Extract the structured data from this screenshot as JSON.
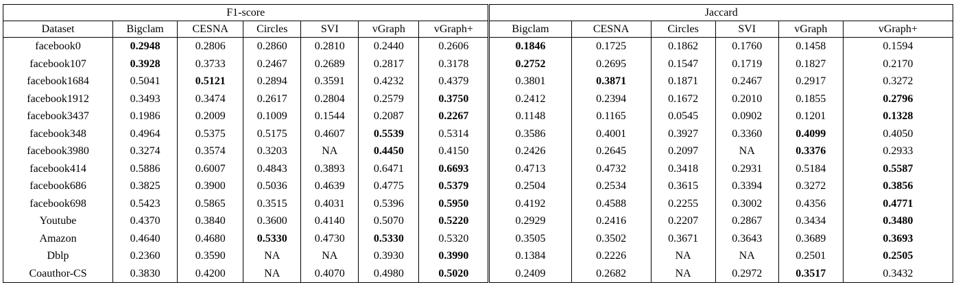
{
  "table": {
    "metric_groups": [
      {
        "label": "F1-score",
        "colspan": 7
      },
      {
        "label": "Jaccard",
        "colspan": 6
      }
    ],
    "column_headers": [
      "Dataset",
      "Bigclam",
      "CESNA",
      "Circles",
      "SVI",
      "vGraph",
      "vGraph+",
      "Bigclam",
      "CESNA",
      "Circles",
      "SVI",
      "vGraph",
      "vGraph+"
    ],
    "rows": [
      {
        "dataset": "facebook0",
        "f1": [
          "0.2948",
          "0.2806",
          "0.2860",
          "0.2810",
          "0.2440",
          "0.2606"
        ],
        "f1_bold": [
          0
        ],
        "jaccard": [
          "0.1846",
          "0.1725",
          "0.1862",
          "0.1760",
          "0.1458",
          "0.1594"
        ],
        "jaccard_bold": [
          0
        ]
      },
      {
        "dataset": "facebook107",
        "f1": [
          "0.3928",
          "0.3733",
          "0.2467",
          "0.2689",
          "0.2817",
          "0.3178"
        ],
        "f1_bold": [
          0
        ],
        "jaccard": [
          "0.2752",
          "0.2695",
          "0.1547",
          "0.1719",
          "0.1827",
          "0.2170"
        ],
        "jaccard_bold": [
          0
        ]
      },
      {
        "dataset": "facebook1684",
        "f1": [
          "0.5041",
          "0.5121",
          "0.2894",
          "0.3591",
          "0.4232",
          "0.4379"
        ],
        "f1_bold": [
          1
        ],
        "jaccard": [
          "0.3801",
          "0.3871",
          "0.1871",
          "0.2467",
          "0.2917",
          "0.3272"
        ],
        "jaccard_bold": [
          1
        ]
      },
      {
        "dataset": "facebook1912",
        "f1": [
          "0.3493",
          "0.3474",
          "0.2617",
          "0.2804",
          "0.2579",
          "0.3750"
        ],
        "f1_bold": [
          5
        ],
        "jaccard": [
          "0.2412",
          "0.2394",
          "0.1672",
          "0.2010",
          "0.1855",
          "0.2796"
        ],
        "jaccard_bold": [
          5
        ]
      },
      {
        "dataset": "facebook3437",
        "f1": [
          "0.1986",
          "0.2009",
          "0.1009",
          "0.1544",
          "0.2087",
          "0.2267"
        ],
        "f1_bold": [
          5
        ],
        "jaccard": [
          "0.1148",
          "0.1165",
          "0.0545",
          "0.0902",
          "0.1201",
          "0.1328"
        ],
        "jaccard_bold": [
          5
        ]
      },
      {
        "dataset": "facebook348",
        "f1": [
          "0.4964",
          "0.5375",
          "0.5175",
          "0.4607",
          "0.5539",
          "0.5314"
        ],
        "f1_bold": [
          4
        ],
        "jaccard": [
          "0.3586",
          "0.4001",
          "0.3927",
          "0.3360",
          "0.4099",
          "0.4050"
        ],
        "jaccard_bold": [
          4
        ]
      },
      {
        "dataset": "facebook3980",
        "f1": [
          "0.3274",
          "0.3574",
          "0.3203",
          "NA",
          "0.4450",
          "0.4150"
        ],
        "f1_bold": [
          4
        ],
        "jaccard": [
          "0.2426",
          "0.2645",
          "0.2097",
          "NA",
          "0.3376",
          "0.2933"
        ],
        "jaccard_bold": [
          4
        ]
      },
      {
        "dataset": "facebook414",
        "f1": [
          "0.5886",
          "0.6007",
          "0.4843",
          "0.3893",
          "0.6471",
          "0.6693"
        ],
        "f1_bold": [
          5
        ],
        "jaccard": [
          "0.4713",
          "0.4732",
          "0.3418",
          "0.2931",
          "0.5184",
          "0.5587"
        ],
        "jaccard_bold": [
          5
        ]
      },
      {
        "dataset": "facebook686",
        "f1": [
          "0.3825",
          "0.3900",
          "0.5036",
          "0.4639",
          "0.4775",
          "0.5379"
        ],
        "f1_bold": [
          5
        ],
        "jaccard": [
          "0.2504",
          "0.2534",
          "0.3615",
          "0.3394",
          "0.3272",
          "0.3856"
        ],
        "jaccard_bold": [
          5
        ]
      },
      {
        "dataset": "facebook698",
        "f1": [
          "0.5423",
          "0.5865",
          "0.3515",
          "0.4031",
          "0.5396",
          "0.5950"
        ],
        "f1_bold": [
          5
        ],
        "jaccard": [
          "0.4192",
          "0.4588",
          "0.2255",
          "0.3002",
          "0.4356",
          "0.4771"
        ],
        "jaccard_bold": [
          5
        ]
      },
      {
        "dataset": "Youtube",
        "f1": [
          "0.4370",
          "0.3840",
          "0.3600",
          "0.4140",
          "0.5070",
          "0.5220"
        ],
        "f1_bold": [
          5
        ],
        "jaccard": [
          "0.2929",
          "0.2416",
          "0.2207",
          "0.2867",
          "0.3434",
          "0.3480"
        ],
        "jaccard_bold": [
          5
        ]
      },
      {
        "dataset": "Amazon",
        "f1": [
          "0.4640",
          "0.4680",
          "0.5330",
          "0.4730",
          "0.5330",
          "0.5320"
        ],
        "f1_bold": [
          2,
          4
        ],
        "jaccard": [
          "0.3505",
          "0.3502",
          "0.3671",
          "0.3643",
          "0.3689",
          "0.3693"
        ],
        "jaccard_bold": [
          5
        ]
      },
      {
        "dataset": "Dblp",
        "f1": [
          "0.2360",
          "0.3590",
          "NA",
          "NA",
          "0.3930",
          "0.3990"
        ],
        "f1_bold": [
          5
        ],
        "jaccard": [
          "0.1384",
          "0.2226",
          "NA",
          "NA",
          "0.2501",
          "0.2505"
        ],
        "jaccard_bold": [
          5
        ]
      },
      {
        "dataset": "Coauthor-CS",
        "f1": [
          "0.3830",
          "0.4200",
          "NA",
          "0.4070",
          "0.4980",
          "0.5020"
        ],
        "f1_bold": [
          5
        ],
        "jaccard": [
          "0.2409",
          "0.2682",
          "NA",
          "0.2972",
          "0.3517",
          "0.3432"
        ],
        "jaccard_bold": [
          4
        ]
      }
    ]
  }
}
